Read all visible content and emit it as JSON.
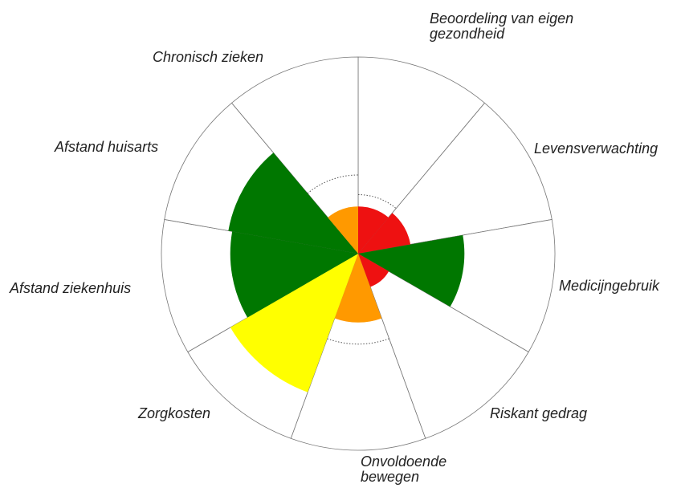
{
  "chart_data": {
    "type": "polar_area",
    "categories": [
      "Beoordeling van eigen gezondheid",
      "Levensverwachting",
      "Medicijngebruik",
      "Riskant gedrag",
      "Onvoldoende bewegen",
      "Zorgkosten",
      "Afstand ziekenhuis",
      "Afstand huisarts",
      "Chronisch zieken"
    ],
    "values": [
      24,
      27,
      54,
      18,
      35,
      75,
      65,
      67,
      24
    ],
    "colors": [
      "#ee1111",
      "#ee1111",
      "#007700",
      "#ee1111",
      "#ff9900",
      "#ffff00",
      "#007700",
      "#007700",
      "#ff9900"
    ],
    "reference": [
      30,
      null,
      null,
      null,
      46,
      null,
      null,
      null,
      40
    ],
    "rlim": [
      0,
      100
    ]
  }
}
